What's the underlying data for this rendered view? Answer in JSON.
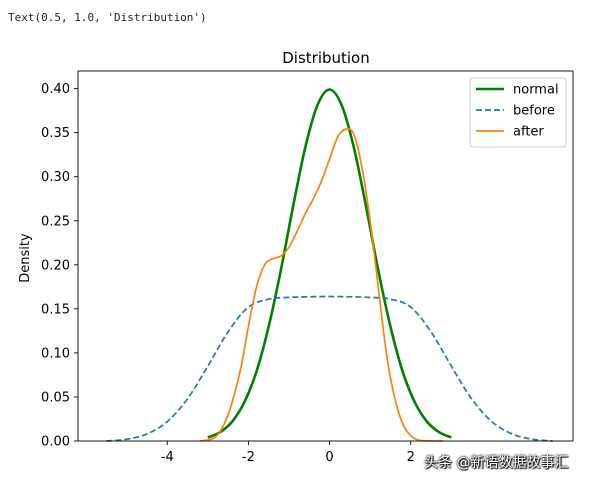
{
  "console": {
    "output_text": "Text(0.5, 1.0, 'Distribution')"
  },
  "watermark": {
    "text": "头条 @新语数据故事汇"
  },
  "chart_data": {
    "type": "line",
    "title": "Distribution",
    "xlabel": "",
    "ylabel": "Density",
    "xlim": [
      -6.2,
      6.0
    ],
    "ylim": [
      0.0,
      0.42
    ],
    "xticks": [
      -4,
      -2,
      0,
      2
    ],
    "xtick_labels": [
      "-4",
      "-2",
      "0",
      "2"
    ],
    "yticks": [
      0.0,
      0.05,
      0.1,
      0.15,
      0.2,
      0.25,
      0.3,
      0.35,
      0.4
    ],
    "ytick_labels": [
      "0.00",
      "0.05",
      "0.10",
      "0.15",
      "0.20",
      "0.25",
      "0.30",
      "0.35",
      "0.40"
    ],
    "grid": false,
    "legend": "top-right",
    "series": [
      {
        "name": "normal",
        "color": "#008000",
        "style": "solid",
        "x": [
          -3.0,
          -2.7,
          -2.4,
          -2.1,
          -1.8,
          -1.5,
          -1.2,
          -0.9,
          -0.6,
          -0.3,
          0.0,
          0.3,
          0.6,
          0.9,
          1.2,
          1.5,
          1.8,
          2.1,
          2.4,
          2.7,
          3.0
        ],
        "y": [
          0.004,
          0.01,
          0.022,
          0.044,
          0.079,
          0.13,
          0.194,
          0.266,
          0.333,
          0.381,
          0.399,
          0.381,
          0.333,
          0.266,
          0.194,
          0.13,
          0.079,
          0.044,
          0.022,
          0.01,
          0.004
        ]
      },
      {
        "name": "before",
        "color": "#1f77b4",
        "style": "dashed",
        "x": [
          -5.5,
          -5.0,
          -4.5,
          -4.0,
          -3.5,
          -3.0,
          -2.5,
          -2.0,
          -1.5,
          -1.0,
          0.0,
          1.0,
          1.5,
          2.0,
          2.5,
          3.0,
          3.5,
          4.0,
          4.5,
          5.0,
          5.5
        ],
        "y": [
          0.0,
          0.002,
          0.008,
          0.022,
          0.048,
          0.085,
          0.124,
          0.152,
          0.161,
          0.163,
          0.164,
          0.163,
          0.161,
          0.152,
          0.124,
          0.085,
          0.048,
          0.022,
          0.008,
          0.002,
          0.0
        ]
      },
      {
        "name": "after",
        "color": "#ff7f0e",
        "style": "solid",
        "x": [
          -3.2,
          -2.8,
          -2.5,
          -2.2,
          -2.0,
          -1.8,
          -1.6,
          -1.4,
          -1.2,
          -1.0,
          -0.8,
          -0.6,
          -0.4,
          -0.2,
          0.0,
          0.2,
          0.4,
          0.6,
          0.8,
          1.0,
          1.2,
          1.4,
          1.6,
          1.8,
          2.0,
          2.2,
          2.5,
          2.8
        ],
        "y": [
          0.0,
          0.005,
          0.03,
          0.08,
          0.13,
          0.175,
          0.2,
          0.207,
          0.21,
          0.22,
          0.238,
          0.258,
          0.275,
          0.295,
          0.32,
          0.345,
          0.354,
          0.348,
          0.31,
          0.25,
          0.175,
          0.1,
          0.05,
          0.02,
          0.006,
          0.001,
          0.0,
          0.0
        ]
      }
    ]
  }
}
